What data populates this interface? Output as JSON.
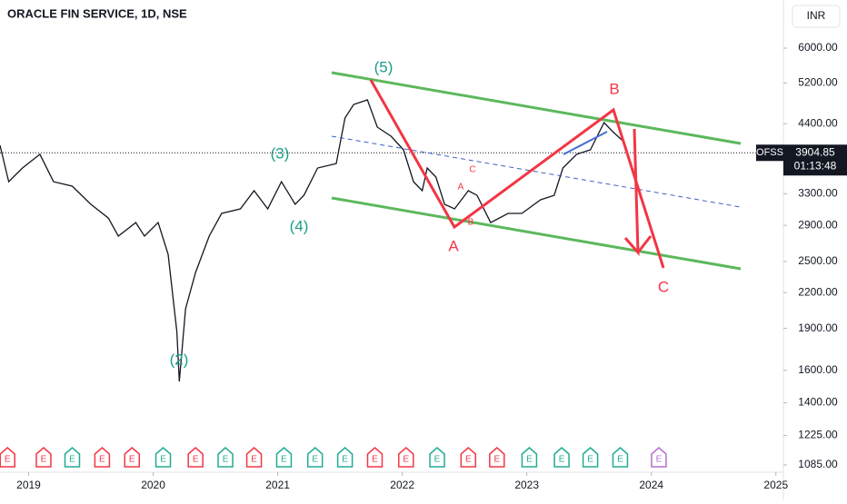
{
  "chart_data": {
    "type": "line",
    "title": "ORACLE FIN SERVICE, 1D, NSE",
    "currency": "INR",
    "symbol": "OFSS",
    "last_price": 3904.85,
    "countdown": "01:13:48",
    "log_scale": true,
    "color": "#131722",
    "x": [
      2018.77,
      2018.84,
      2018.95,
      2019.09,
      2019.2,
      2019.35,
      2019.5,
      2019.64,
      2019.72,
      2019.86,
      2019.93,
      2020.04,
      2020.12,
      2020.19,
      2020.21,
      2020.26,
      2020.34,
      2020.45,
      2020.55,
      2020.7,
      2020.81,
      2020.92,
      2021.03,
      2021.14,
      2021.21,
      2021.32,
      2021.47,
      2021.54,
      2021.61,
      2021.72,
      2021.8,
      2021.91,
      2022.01,
      2022.09,
      2022.16,
      2022.2,
      2022.27,
      2022.34,
      2022.42,
      2022.53,
      2022.6,
      2022.71,
      2022.85,
      2022.96,
      2023.11,
      2023.22,
      2023.29,
      2023.4,
      2023.51,
      2023.62,
      2023.69,
      2023.77
    ],
    "values": [
      4027,
      3468,
      3669,
      3881,
      3468,
      3405,
      3161,
      2988,
      2774,
      2933,
      2774,
      2933,
      2575,
      1876,
      1528,
      2059,
      2390,
      2774,
      3045,
      3102,
      3342,
      3102,
      3468,
      3161,
      3280,
      3669,
      3737,
      4503,
      4762,
      4852,
      4338,
      4180,
      3953,
      3468,
      3342,
      3669,
      3535,
      3161,
      3102,
      3342,
      3280,
      2933,
      3045,
      3045,
      3220,
      3280,
      3669,
      3881,
      3953,
      4420,
      4258,
      4103
    ],
    "xlim": [
      2018.77,
      2025.06
    ],
    "xticks": [
      2019,
      2020,
      2021,
      2022,
      2023,
      2024,
      2025
    ],
    "ylim": [
      1053,
      7310
    ],
    "yticks": [
      {
        "value": 6000,
        "label": "6000.00"
      },
      {
        "value": 5200,
        "label": "5200.00"
      },
      {
        "value": 4400,
        "label": "4400.00"
      },
      {
        "value": 3300,
        "label": "3300.00"
      },
      {
        "value": 2900,
        "label": "2900.00"
      },
      {
        "value": 2500,
        "label": "2500.00"
      },
      {
        "value": 2200,
        "label": "2200.00"
      },
      {
        "value": 1900,
        "label": "1900.00"
      },
      {
        "value": 1600,
        "label": "1600.00"
      },
      {
        "value": 1400,
        "label": "1400.00"
      },
      {
        "value": 1225,
        "label": "1225.00"
      },
      {
        "value": 1085,
        "label": "1085.00"
      }
    ],
    "annotations": [
      "(5)",
      "(3)",
      "(4)",
      "(2)",
      "A",
      "B",
      "C",
      "A",
      "B",
      "C"
    ],
    "earnings": {
      "label": "E",
      "x": [
        2018.83,
        2019.12,
        2019.35,
        2019.59,
        2019.83,
        2020.08,
        2020.34,
        2020.58,
        2020.81,
        2021.05,
        2021.3,
        2021.54,
        2021.78,
        2022.03,
        2022.28,
        2022.53,
        2022.76,
        2023.02,
        2023.28,
        2023.51,
        2023.75,
        2024.06
      ],
      "colors": [
        "#f23645",
        "#f23645",
        "#22ab94",
        "#f23645",
        "#f23645",
        "#22ab94",
        "#f23645",
        "#22ab94",
        "#f23645",
        "#22ab94",
        "#22ab94",
        "#22ab94",
        "#f23645",
        "#f23645",
        "#22ab94",
        "#f23645",
        "#f23645",
        "#22ab94",
        "#22ab94",
        "#22ab94",
        "#22ab94",
        "#b56fd1"
      ]
    }
  }
}
